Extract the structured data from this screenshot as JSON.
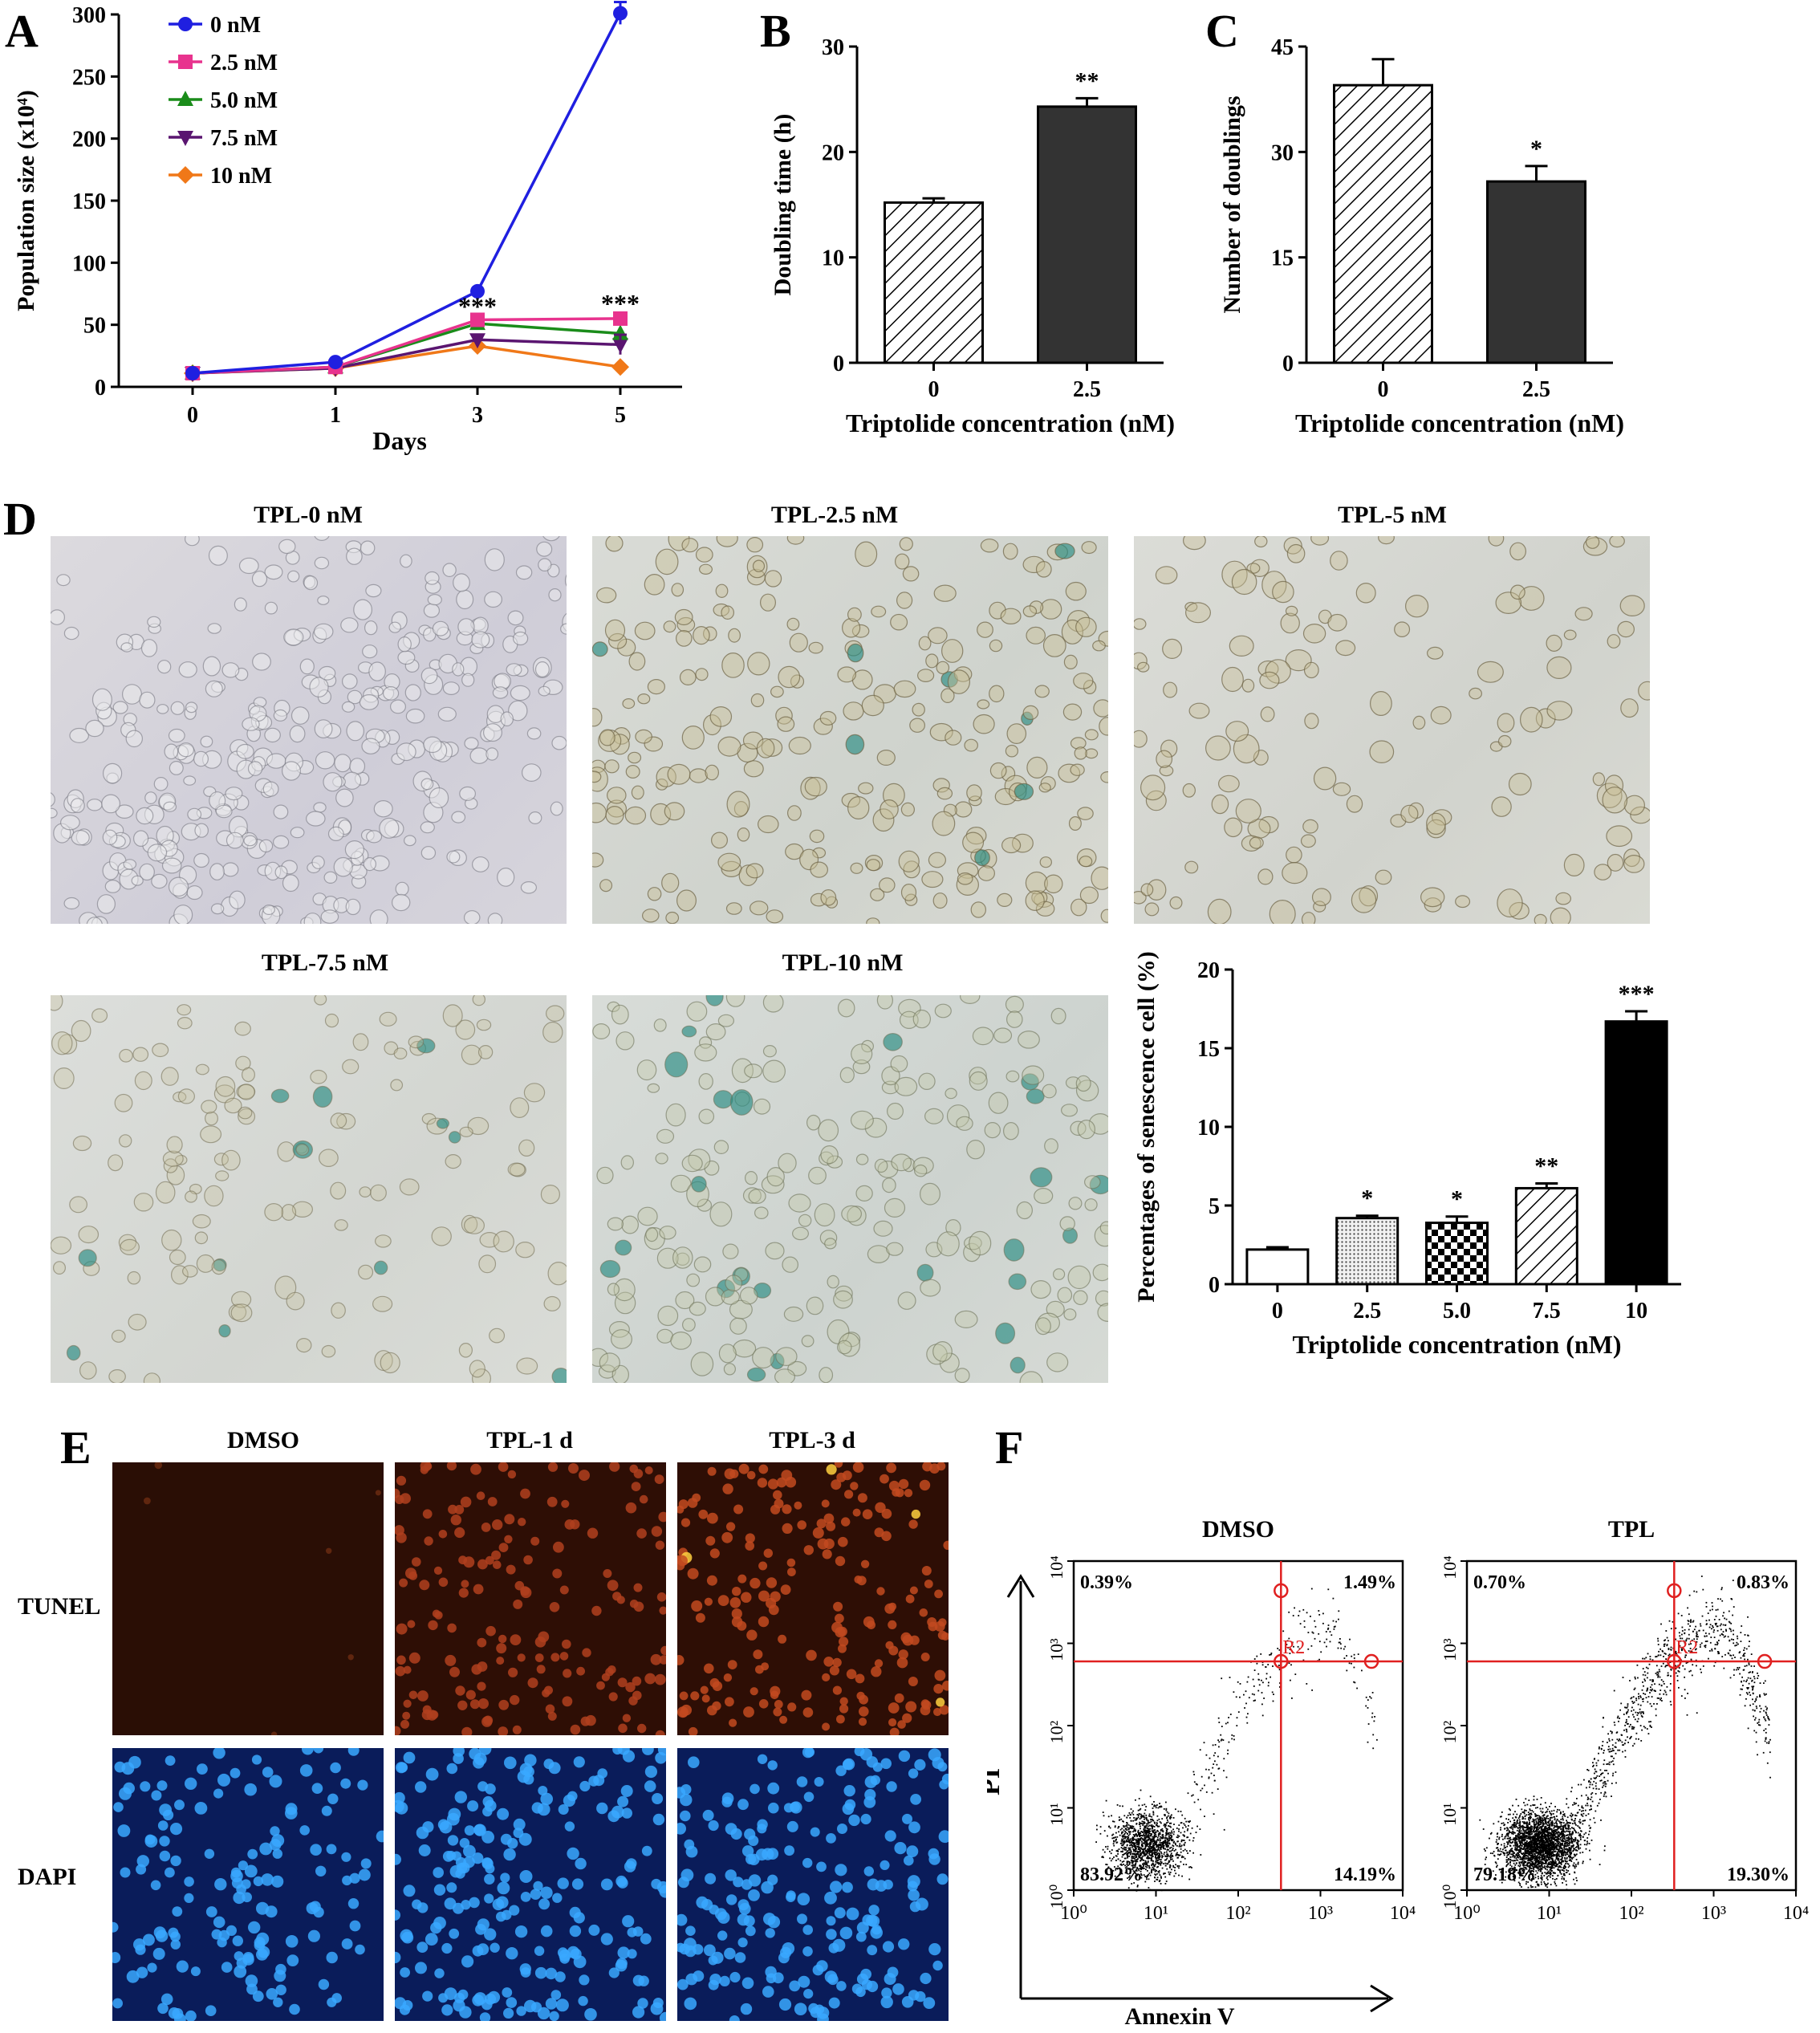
{
  "panels": {
    "A": "A",
    "B": "B",
    "C": "C",
    "D": "D",
    "E": "E",
    "F": "F"
  },
  "chart_data": [
    {
      "panel": "A",
      "type": "line",
      "xlabel": "Days",
      "ylabel": "Population size (x10⁴)",
      "x": [
        0,
        1,
        3,
        5
      ],
      "ylim": [
        0,
        300
      ],
      "yticks": [
        0,
        50,
        100,
        150,
        200,
        250,
        300
      ],
      "legend_position": "top-left",
      "series": [
        {
          "name": "0 nM",
          "values": [
            11,
            20,
            77,
            301
          ],
          "color": "#1f1fe0",
          "marker": "circle"
        },
        {
          "name": "2.5 nM",
          "values": [
            11,
            16,
            54,
            55
          ],
          "color": "#e8338e",
          "marker": "square"
        },
        {
          "name": "5.0 nM",
          "values": [
            11,
            16,
            51,
            43
          ],
          "color": "#1a8c1a",
          "marker": "triangle-up"
        },
        {
          "name": "7.5 nM",
          "values": [
            11,
            15,
            38,
            34
          ],
          "color": "#5a1570",
          "marker": "triangle-down"
        },
        {
          "name": "10 nM",
          "values": [
            11,
            15,
            33,
            16
          ],
          "color": "#f07818",
          "marker": "diamond"
        }
      ],
      "annotations": [
        {
          "text": "***",
          "x": 3,
          "y": 58
        },
        {
          "text": "***",
          "x": 5,
          "y": 60
        }
      ]
    },
    {
      "panel": "B",
      "type": "bar",
      "xlabel": "Triptolide concentration (nM)",
      "ylabel": "Doubling time (h)",
      "categories": [
        "0",
        "2.5"
      ],
      "values": [
        15.2,
        24.3
      ],
      "errors": [
        0.4,
        0.8
      ],
      "patterns": [
        "hatch",
        "dark"
      ],
      "ylim": [
        0,
        30
      ],
      "yticks": [
        0,
        10,
        20,
        30
      ],
      "annotations": [
        "",
        "**"
      ]
    },
    {
      "panel": "C",
      "type": "bar",
      "xlabel": "Triptolide concentration (nM)",
      "ylabel": "Number of doublings",
      "categories": [
        "0",
        "2.5"
      ],
      "values": [
        39.5,
        25.8
      ],
      "errors": [
        3.7,
        2.2
      ],
      "patterns": [
        "hatch",
        "dark"
      ],
      "ylim": [
        0,
        45
      ],
      "yticks": [
        0,
        15,
        30,
        45
      ],
      "annotations": [
        "",
        "*"
      ]
    },
    {
      "panel": "D",
      "type": "bar",
      "xlabel": "Triptolide concentration (nM)",
      "ylabel": "Percentages of senescence cell (%)",
      "categories": [
        "0",
        "2.5",
        "5.0",
        "7.5",
        "10"
      ],
      "values": [
        2.2,
        4.2,
        3.9,
        6.1,
        16.7
      ],
      "errors": [
        0.15,
        0.15,
        0.4,
        0.3,
        0.65
      ],
      "patterns": [
        "white",
        "dots",
        "checker",
        "hatch",
        "black"
      ],
      "ylim": [
        0,
        20
      ],
      "yticks": [
        0,
        5,
        10,
        15,
        20
      ],
      "annotations": [
        "",
        "*",
        "*",
        "**",
        "***"
      ]
    },
    {
      "panel": "F",
      "type": "scatter",
      "xlabel": "Annexin V",
      "ylabel": "PI",
      "xscale": "log",
      "yscale": "log",
      "xticks": [
        "10⁰",
        "10¹",
        "10²",
        "10³",
        "10⁴"
      ],
      "yticks": [
        "10⁰",
        "10¹",
        "10²",
        "10³",
        "10⁴"
      ],
      "gate_label": "R2",
      "plots": [
        {
          "title": "DMSO",
          "quadrants": {
            "upper_left": "0.39%",
            "upper_right": "1.49%",
            "lower_left": "83.92%",
            "lower_right": "14.19%"
          }
        },
        {
          "title": "TPL",
          "quadrants": {
            "upper_left": "0.70%",
            "upper_right": "0.83%",
            "lower_left": "79.18%",
            "lower_right": "19.30%"
          }
        }
      ]
    }
  ],
  "micrographs_D": [
    {
      "title": "TPL-0 nM"
    },
    {
      "title": "TPL-2.5 nM"
    },
    {
      "title": "TPL-5 nM"
    },
    {
      "title": "TPL-7.5 nM"
    },
    {
      "title": "TPL-10 nM"
    }
  ],
  "panel_E": {
    "columns": [
      "DMSO",
      "TPL-1 d",
      "TPL-3 d"
    ],
    "rows": [
      "TUNEL",
      "DAPI"
    ]
  }
}
